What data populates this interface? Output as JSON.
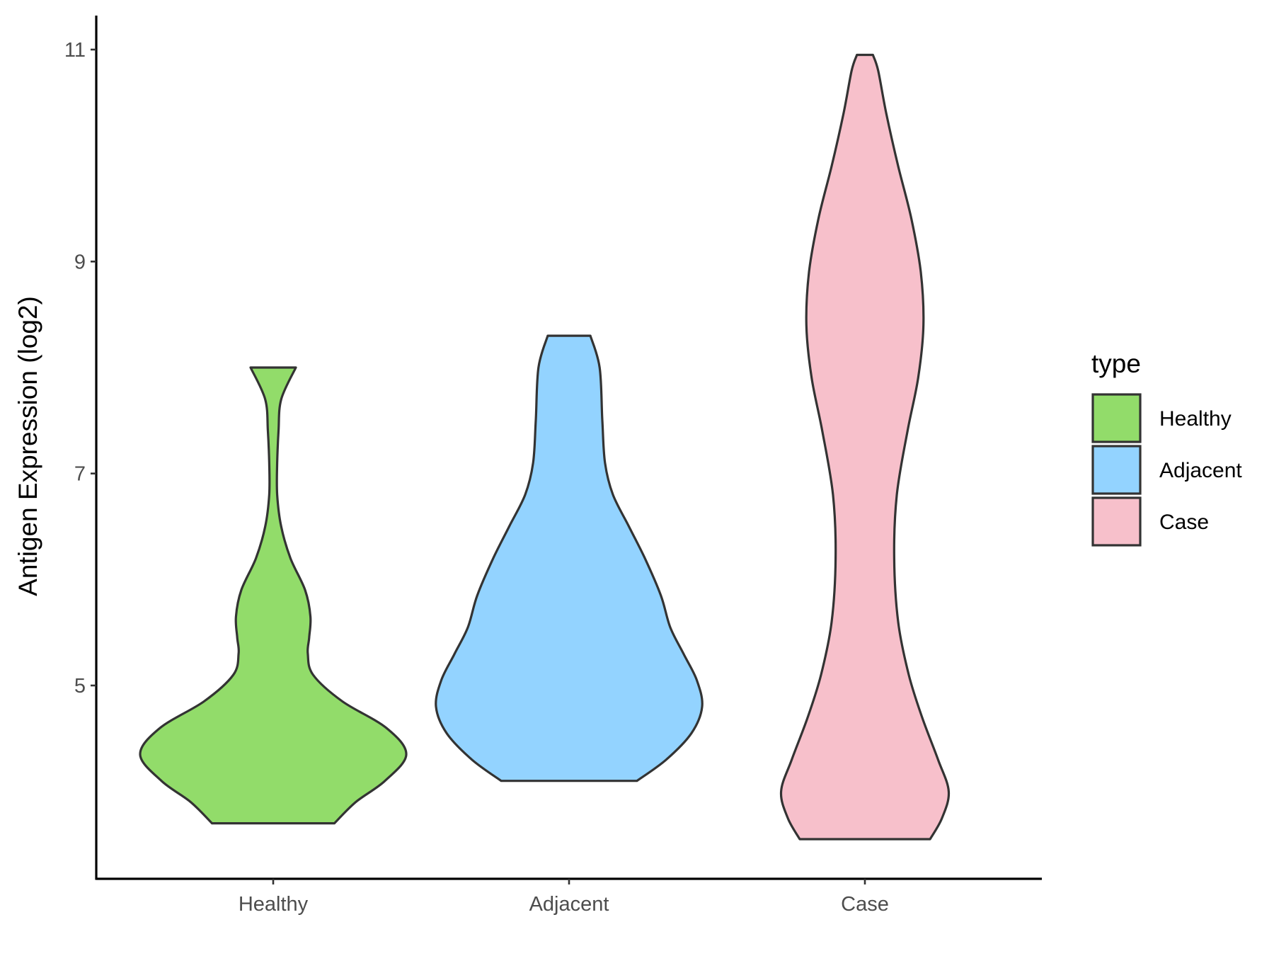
{
  "chart_data": {
    "type": "violin",
    "ylabel": "Antigen Expression (log2)",
    "xlabel": "",
    "ylim": [
      3.3,
      11.3
    ],
    "yticks": [
      5,
      7,
      9,
      11
    ],
    "categories": [
      "Healthy",
      "Adjacent",
      "Case"
    ],
    "legend": {
      "title": "type",
      "position": "right",
      "entries": [
        "Healthy",
        "Adjacent",
        "Case"
      ]
    },
    "colors": {
      "Healthy": "#92dc6a",
      "Adjacent": "#93d3ff",
      "Case": "#f7c0cb",
      "outline": "#333333"
    },
    "series": [
      {
        "name": "Healthy",
        "min": 3.7,
        "max": 8.0,
        "density": [
          [
            3.7,
            0.46
          ],
          [
            3.9,
            0.62
          ],
          [
            4.1,
            0.84
          ],
          [
            4.35,
            1.0
          ],
          [
            4.6,
            0.85
          ],
          [
            4.85,
            0.52
          ],
          [
            5.1,
            0.3
          ],
          [
            5.3,
            0.26
          ],
          [
            5.45,
            0.27
          ],
          [
            5.65,
            0.28
          ],
          [
            5.9,
            0.24
          ],
          [
            6.2,
            0.13
          ],
          [
            6.5,
            0.06
          ],
          [
            6.8,
            0.03
          ],
          [
            7.1,
            0.03
          ],
          [
            7.4,
            0.04
          ],
          [
            7.7,
            0.06
          ],
          [
            8.0,
            0.17
          ]
        ]
      },
      {
        "name": "Adjacent",
        "min": 4.1,
        "max": 8.3,
        "density": [
          [
            4.1,
            0.51
          ],
          [
            4.3,
            0.73
          ],
          [
            4.55,
            0.92
          ],
          [
            4.8,
            1.0
          ],
          [
            5.05,
            0.96
          ],
          [
            5.3,
            0.86
          ],
          [
            5.55,
            0.76
          ],
          [
            5.85,
            0.69
          ],
          [
            6.2,
            0.57
          ],
          [
            6.5,
            0.45
          ],
          [
            6.8,
            0.33
          ],
          [
            7.1,
            0.27
          ],
          [
            7.5,
            0.25
          ],
          [
            8.0,
            0.23
          ],
          [
            8.3,
            0.16
          ]
        ]
      },
      {
        "name": "Case",
        "min": 3.55,
        "max": 10.95,
        "density": [
          [
            3.55,
            0.49
          ],
          [
            3.75,
            0.58
          ],
          [
            4.0,
            0.63
          ],
          [
            4.3,
            0.55
          ],
          [
            4.7,
            0.43
          ],
          [
            5.1,
            0.33
          ],
          [
            5.6,
            0.25
          ],
          [
            6.2,
            0.22
          ],
          [
            6.8,
            0.24
          ],
          [
            7.4,
            0.32
          ],
          [
            7.9,
            0.4
          ],
          [
            8.4,
            0.44
          ],
          [
            8.9,
            0.42
          ],
          [
            9.4,
            0.35
          ],
          [
            9.9,
            0.25
          ],
          [
            10.4,
            0.16
          ],
          [
            10.8,
            0.1
          ],
          [
            10.95,
            0.06
          ]
        ]
      }
    ]
  }
}
